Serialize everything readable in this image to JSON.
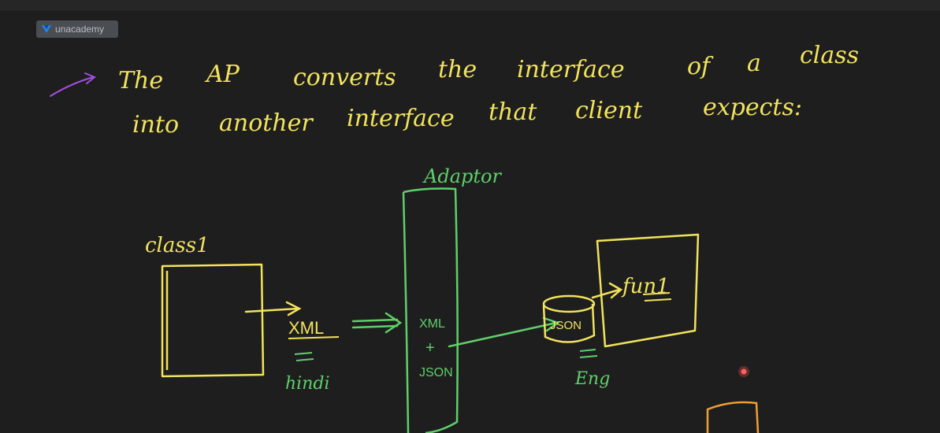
{
  "branding": {
    "logo_text": "unacademy",
    "logo_icon": "unacademy-logo-icon"
  },
  "notes": {
    "line1_words": [
      "The",
      "AP",
      "converts",
      "the",
      "interface",
      "of",
      "a",
      "class"
    ],
    "line2_words": [
      "into",
      "another",
      "interface",
      "that",
      "client",
      "expects:"
    ]
  },
  "diagram": {
    "class_label": "class1",
    "xml_label": "XML",
    "hindi_label": "hindi",
    "adaptor_label": "Adaptor",
    "adaptor_line1": "XML",
    "adaptor_line2": "+",
    "adaptor_line3": "JSON",
    "json_label": "JSON",
    "eng_label": "Eng",
    "func_label": "fun1"
  },
  "colors": {
    "background": "#1e1e1e",
    "yellow_ink": "#f2e35c",
    "green_ink": "#5fcf6a",
    "purple_ink": "#a24fe0",
    "orange_ink": "#f0a030",
    "pointer_red": "#e84848"
  }
}
